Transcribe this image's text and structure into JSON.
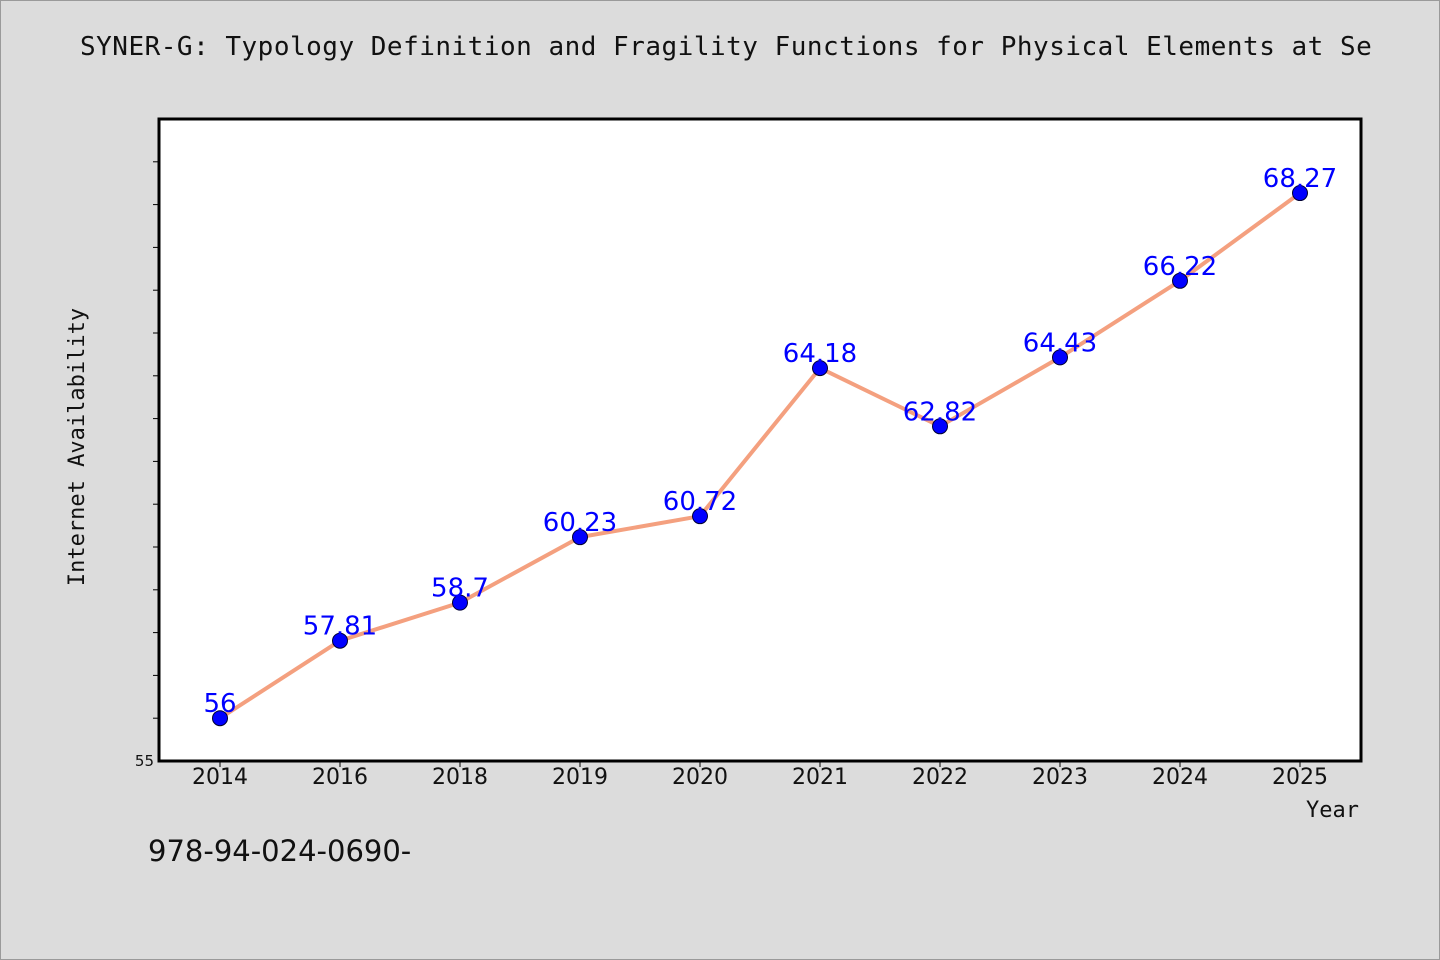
{
  "chart_data": {
    "type": "line",
    "title": "SYNER-G: Typology Definition and Fragility Functions for Physical Elements at Se",
    "xlabel": "Year",
    "ylabel": "Internet Availability",
    "categories": [
      "2014",
      "2016",
      "2018",
      "2019",
      "2020",
      "2021",
      "2022",
      "2023",
      "2024",
      "2025"
    ],
    "values": [
      56,
      57.81,
      58.7,
      60.23,
      60.72,
      64.18,
      62.82,
      64.43,
      66.22,
      68.27
    ],
    "data_labels": [
      "56",
      "57.81",
      "58.7",
      "60.23",
      "60.72",
      "64.18",
      "62.82",
      "64.43",
      "66.22",
      "68.27"
    ],
    "ylim": [
      55,
      70
    ],
    "y_tick_labels": [
      "55"
    ],
    "grid": false,
    "line_color": "#f4a07f",
    "marker_color": "#0000ff",
    "label_color": "#0000ff"
  },
  "footnote": "978-94-024-0690-"
}
